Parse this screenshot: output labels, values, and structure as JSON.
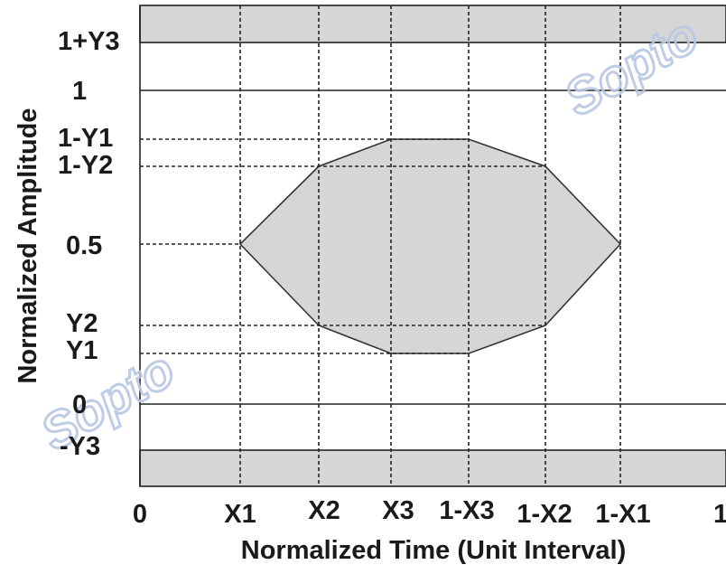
{
  "diagram": {
    "y_labels": {
      "one_plus_y3": "1+Y3",
      "one": "1",
      "one_minus_y1": "1-Y1",
      "one_minus_y2": "1-Y2",
      "half": "0.5",
      "y2": "Y2",
      "y1": "Y1",
      "zero": "0",
      "minus_y3": "-Y3"
    },
    "x_labels": {
      "zero": "0",
      "x1": "X1",
      "x2": "X2",
      "x3": "X3",
      "one_minus_x3": "1-X3",
      "one_minus_x2": "1-X2",
      "one_minus_x1": "1-X1",
      "one": "1"
    },
    "x_axis_title": "Normalized Time (Unit Interval)",
    "y_axis_title": "Normalized Amplitude",
    "watermark_text": "Sopto",
    "colors": {
      "mask_fill": "#d6d6d6",
      "line": "#222222",
      "text": "#1a1a1a",
      "watermark": "#b7c8e3"
    }
  }
}
